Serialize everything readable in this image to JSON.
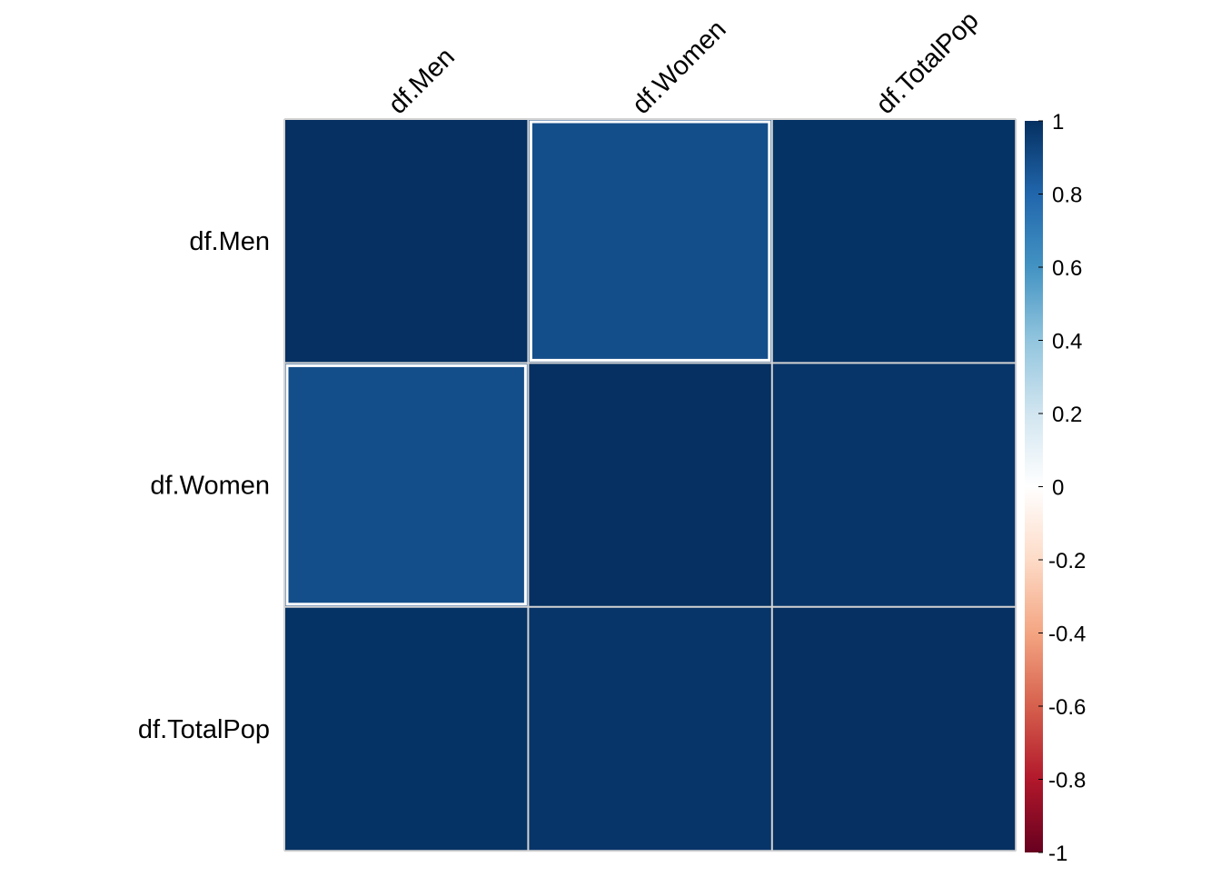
{
  "chart_data": {
    "type": "heatmap",
    "title": "",
    "row_labels": [
      "df.Men",
      "df.Women",
      "df.TotalPop"
    ],
    "col_labels": [
      "df.Men",
      "df.Women",
      "df.TotalPop"
    ],
    "matrix": [
      [
        1.0,
        0.89,
        0.99
      ],
      [
        0.89,
        1.0,
        0.98
      ],
      [
        0.99,
        0.98,
        1.0
      ]
    ],
    "colorbar": {
      "range": [
        -1,
        1
      ],
      "ticks": [
        "1",
        "0.8",
        "0.6",
        "0.4",
        "0.2",
        "0",
        "-0.2",
        "-0.4",
        "-0.6",
        "-0.8",
        "-1"
      ],
      "colors": {
        "-1": "#67001f",
        "-0.8": "#b2182b",
        "-0.6": "#d6604d",
        "-0.4": "#f4a582",
        "-0.2": "#fddbc7",
        "0": "#ffffff",
        "0.2": "#d1e5f0",
        "0.4": "#92c5de",
        "0.6": "#4393c3",
        "0.8": "#2166ac",
        "1": "#053061"
      }
    },
    "grid_color": "#d3d3d3",
    "highlight_color": "#ffffff"
  }
}
